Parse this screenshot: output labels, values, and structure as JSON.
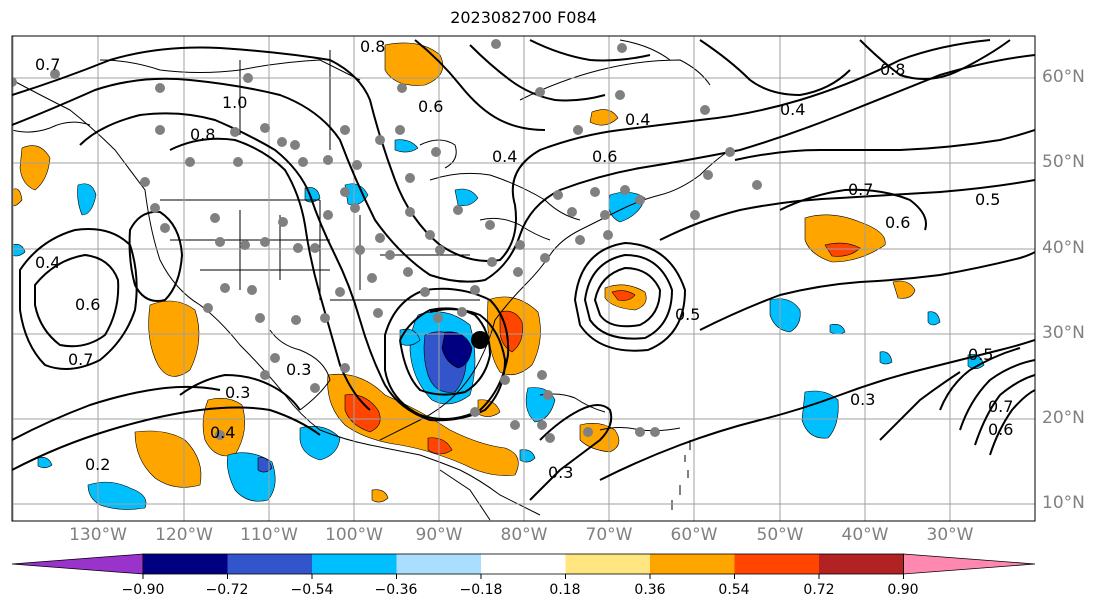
{
  "title": "2023082700 F084",
  "lat_labels": [
    "60°N",
    "50°N",
    "40°N",
    "30°N",
    "20°N",
    "10°N"
  ],
  "lon_labels": [
    "130°W",
    "120°W",
    "110°W",
    "100°W",
    "90°W",
    "80°W",
    "70°W",
    "60°W",
    "50°W",
    "40°W",
    "30°W"
  ],
  "contour_labels": [
    "0.7",
    "0.8",
    "1.0",
    "0.8",
    "0.6",
    "0.4",
    "0.6",
    "0.4",
    "0.4",
    "0.8",
    "0.6",
    "0.5",
    "0.7",
    "0.4",
    "0.6",
    "0.7",
    "0.3",
    "0.3",
    "0.2",
    "0.4",
    "0.5",
    "0.3",
    "0.5",
    "0.7",
    "0.6",
    "0.3"
  ],
  "colorbar": {
    "ticks": [
      "−0.90",
      "−0.72",
      "−0.54",
      "−0.36",
      "−0.18",
      "0.18",
      "0.36",
      "0.54",
      "0.72",
      "0.90"
    ],
    "colors": [
      "#9933cc",
      "#000080",
      "#3355cc",
      "#00bfff",
      "#aadeff",
      "#ffffff",
      "#ffe680",
      "#ffa500",
      "#ff4500",
      "#b22222",
      "#ff88b0"
    ]
  },
  "colors": {
    "grid": "#a0a0a0",
    "contour": "#000000",
    "station": "#808080",
    "label": "#808080"
  }
}
